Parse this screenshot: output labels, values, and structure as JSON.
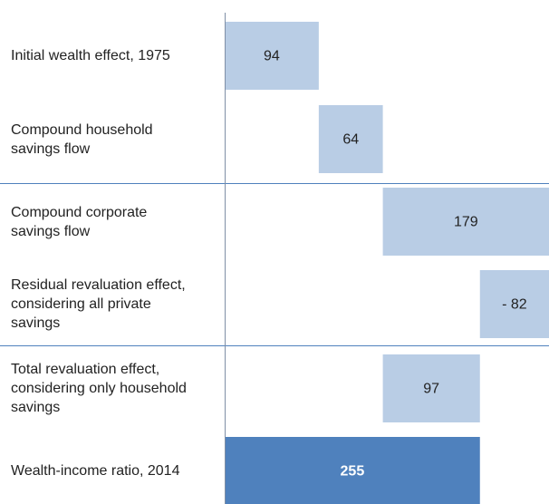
{
  "chart_data": {
    "type": "waterfall",
    "categories": [
      "Initial wealth effect, 1975",
      "Compound household savings flow",
      "Compound corporate savings flow",
      "Residual revaluation effect, considering all private savings",
      "Total revaluation effect, considering only household savings",
      "Wealth-income ratio, 2014"
    ],
    "values": [
      94,
      64,
      179,
      -82,
      97,
      255
    ],
    "value_labels": [
      "94",
      "64",
      "179",
      "- 82",
      "97",
      "255"
    ],
    "color": "#b9cde5",
    "total_color": "#4f81bd",
    "xlim": [
      0,
      324
    ]
  }
}
